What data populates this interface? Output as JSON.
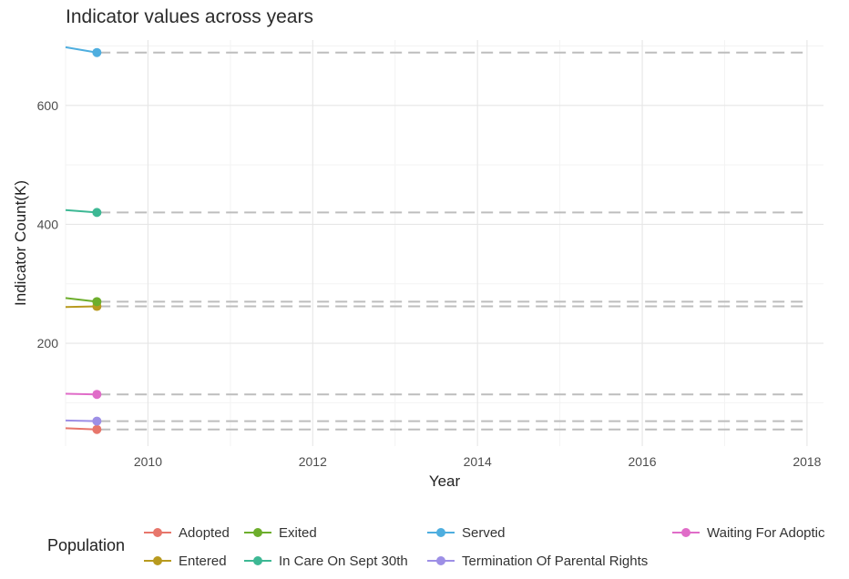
{
  "chart_data": {
    "type": "line",
    "title": "Indicator values across years",
    "xlabel": "Year",
    "ylabel": "Indicator Count(K)",
    "xlim": [
      2009.0,
      2018.2
    ],
    "ylim": [
      27,
      710
    ],
    "x_ticks": [
      "2010",
      "2012",
      "2014",
      "2016",
      "2018"
    ],
    "y_ticks": [
      "200",
      "400",
      "600"
    ],
    "grid": true,
    "legend_title": "Population",
    "legend_position": "bottom",
    "reference_extent": [
      2009.4,
      2018
    ],
    "series": [
      {
        "name": "Adopted",
        "color": "#E7766B",
        "x": [
          2009.0,
          2009.38
        ],
        "y": [
          57,
          55
        ]
      },
      {
        "name": "Entered",
        "color": "#B89A1F",
        "x": [
          2009.0,
          2009.38
        ],
        "y": [
          261,
          262
        ]
      },
      {
        "name": "Exited",
        "color": "#6DAE2C",
        "x": [
          2009.0,
          2009.38
        ],
        "y": [
          276,
          270
        ]
      },
      {
        "name": "In Care On Sept 30th",
        "color": "#3DB894",
        "x": [
          2009.0,
          2009.38
        ],
        "y": [
          424,
          420
        ]
      },
      {
        "name": "Served",
        "color": "#4EAEDF",
        "x": [
          2009.0,
          2009.38
        ],
        "y": [
          698,
          689
        ]
      },
      {
        "name": "Termination Of Parental Rights",
        "color": "#9D8FE6",
        "x": [
          2009.0,
          2009.38
        ],
        "y": [
          70,
          69
        ]
      },
      {
        "name": "Waiting For Adoptic",
        "color": "#E06CC8",
        "x": [
          2009.0,
          2009.38
        ],
        "y": [
          115,
          114
        ]
      }
    ]
  }
}
